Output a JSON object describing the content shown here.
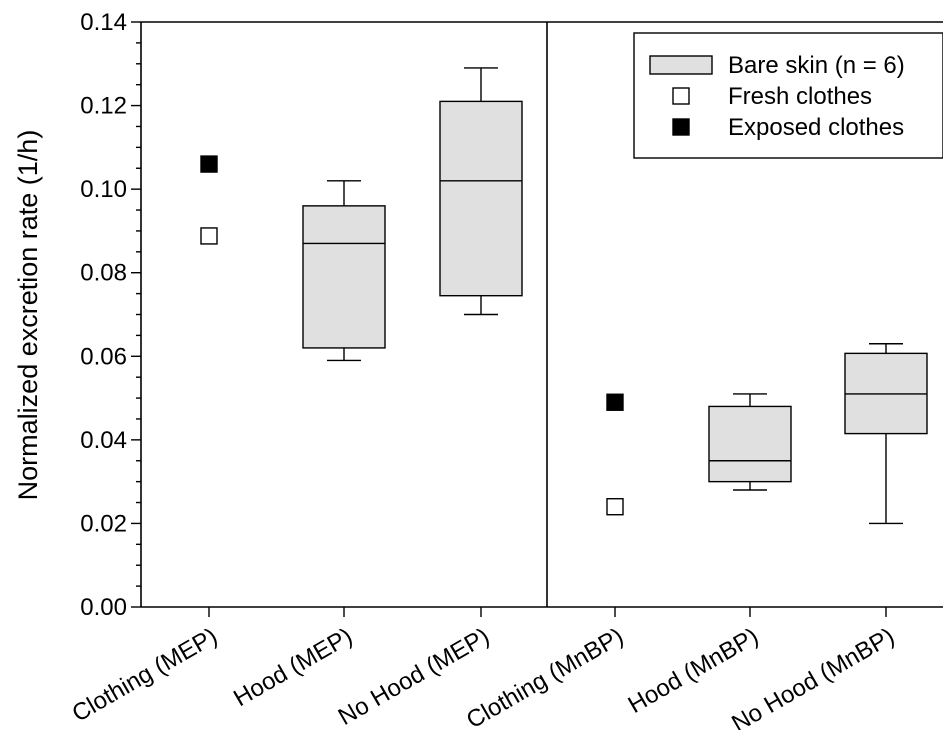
{
  "chart_data": {
    "type": "box",
    "ylabel": "Normalized excretion rate (1/h)",
    "ylim": [
      0,
      0.14
    ],
    "y_ticks": [
      "0.00",
      "0.02",
      "0.04",
      "0.06",
      "0.08",
      "0.10",
      "0.12",
      "0.14"
    ],
    "y_minor_step": 0.005,
    "categories": [
      "Clothing (MEP)",
      "Hood (MEP)",
      "No Hood (MEP)",
      "Clothing (MnBP)",
      "Hood (MnBP)",
      "No Hood (MnBP)"
    ],
    "panel_divider_after": 3,
    "series": [
      {
        "name": "Bare skin (n = 6)",
        "kind": "box",
        "fill": "#e0e0e0",
        "boxes": [
          null,
          {
            "whisker_low": 0.059,
            "q1": 0.062,
            "median": 0.087,
            "q3": 0.096,
            "whisker_high": 0.102
          },
          {
            "whisker_low": 0.07,
            "q1": 0.0745,
            "median": 0.102,
            "q3": 0.121,
            "whisker_high": 0.129
          },
          null,
          {
            "whisker_low": 0.028,
            "q1": 0.03,
            "median": 0.035,
            "q3": 0.048,
            "whisker_high": 0.051
          },
          {
            "whisker_low": 0.02,
            "q1": 0.0415,
            "median": 0.051,
            "q3": 0.0607,
            "whisker_high": 0.063
          }
        ]
      },
      {
        "name": "Fresh clothes",
        "kind": "marker",
        "marker_fill": "#ffffff",
        "values": [
          0.0888,
          null,
          null,
          0.024,
          null,
          null
        ]
      },
      {
        "name": "Exposed clothes",
        "kind": "marker",
        "marker_fill": "#000000",
        "values": [
          0.106,
          null,
          null,
          0.049,
          null,
          null
        ]
      }
    ],
    "legend_position": "top-right",
    "grid": false
  }
}
